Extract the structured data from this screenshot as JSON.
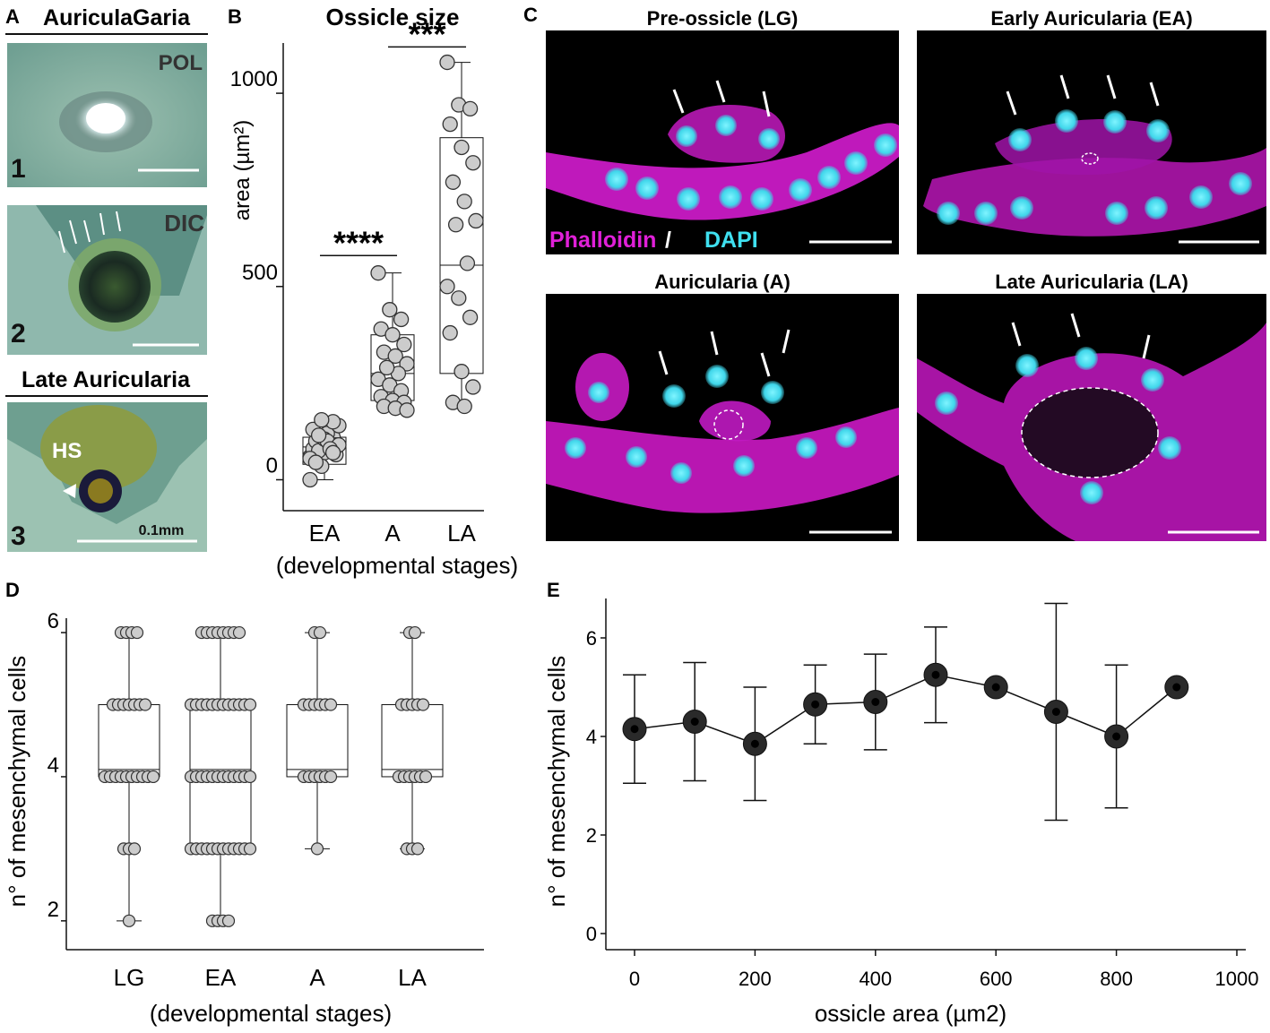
{
  "panel_letters": {
    "a": "A",
    "b": "B",
    "c": "C",
    "d": "D",
    "e": "E"
  },
  "panel_a": {
    "title_top": "AuriculaGaria",
    "title_bottom": "Late Auricularia",
    "tiles": [
      {
        "number": "1",
        "mode": "POL",
        "scale_label": ""
      },
      {
        "number": "2",
        "mode": "DIC",
        "scale_label": ""
      },
      {
        "number": "3",
        "mode": "",
        "hs_label": "HS",
        "scale_label": "0.1mm"
      }
    ]
  },
  "panel_c": {
    "titles": [
      "Pre-ossicle (LG)",
      "Early Auricularia (EA)",
      "Auricularia (A)",
      "Late Auricularia (LA)"
    ],
    "stain_magenta": "Phalloidin",
    "stain_sep": " / ",
    "stain_cyan": "DAPI"
  },
  "colors": {
    "magenta": "#e020d8",
    "cyan": "#3fe0f0",
    "point_fill": "#cccccc",
    "dark_point": "#111111"
  },
  "chart_data": [
    {
      "id": "B",
      "type": "box-scatter",
      "title": "Ossicle size",
      "xlabel": "(developmental stages)",
      "ylabel": "area (µm²)",
      "categories": [
        "EA",
        "A",
        "LA"
      ],
      "ylim": [
        -80,
        1130
      ],
      "yticks": [
        0,
        500,
        1000
      ],
      "boxes": [
        {
          "q1": 40,
          "median": 85,
          "q3": 110,
          "min": 0,
          "max": 160
        },
        {
          "q1": 205,
          "median": 275,
          "q3": 375,
          "min": 180,
          "max": 535
        },
        {
          "q1": 275,
          "median": 555,
          "q3": 885,
          "min": 190,
          "max": 1080
        }
      ],
      "points": [
        [
          60,
          95,
          110,
          80,
          70,
          90,
          100,
          120,
          140,
          75,
          85,
          55,
          35,
          150,
          130,
          105,
          65,
          45,
          100,
          90,
          115,
          80,
          0,
          155,
          70
        ],
        [
          535,
          440,
          415,
          390,
          375,
          350,
          330,
          320,
          300,
          290,
          275,
          260,
          245,
          230,
          215,
          205,
          200,
          190,
          185,
          180,
          290
        ],
        [
          1080,
          970,
          960,
          920,
          860,
          820,
          770,
          720,
          670,
          660,
          560,
          500,
          470,
          420,
          380,
          280,
          240,
          200,
          190
        ]
      ],
      "significance": [
        {
          "label": "****",
          "between": [
            "EA",
            "A"
          ]
        },
        {
          "label": "***",
          "between": [
            "A",
            "LA"
          ]
        }
      ]
    },
    {
      "id": "D",
      "type": "box-scatter",
      "xlabel": "(developmental stages)",
      "ylabel": "n° of mesenchymal cells",
      "categories": [
        "LG",
        "EA",
        "A",
        "LA"
      ],
      "ylim": [
        1.6,
        6.2
      ],
      "yticks": [
        2,
        4,
        6
      ],
      "boxes": [
        {
          "q1": 4,
          "median": 4.1,
          "q3": 5,
          "min": 2,
          "max": 6
        },
        {
          "q1": 3,
          "median": 4.1,
          "q3": 5,
          "min": 2,
          "max": 6
        },
        {
          "q1": 4,
          "median": 4.1,
          "q3": 5,
          "min": 3,
          "max": 6
        },
        {
          "q1": 4,
          "median": 4.1,
          "q3": 5,
          "min": 3,
          "max": 6
        }
      ],
      "point_rows": [
        [
          {
            "y": 6,
            "n": 4
          },
          {
            "y": 5,
            "n": 7
          },
          {
            "y": 4,
            "n": 10
          },
          {
            "y": 3,
            "n": 3
          },
          {
            "y": 2,
            "n": 1
          }
        ],
        [
          {
            "y": 6,
            "n": 8
          },
          {
            "y": 5,
            "n": 12
          },
          {
            "y": 4,
            "n": 12
          },
          {
            "y": 3,
            "n": 12
          },
          {
            "y": 2,
            "n": 4
          }
        ],
        [
          {
            "y": 6,
            "n": 2
          },
          {
            "y": 5,
            "n": 6
          },
          {
            "y": 4,
            "n": 6
          },
          {
            "y": 3,
            "n": 1
          }
        ],
        [
          {
            "y": 6,
            "n": 2
          },
          {
            "y": 5,
            "n": 5
          },
          {
            "y": 4,
            "n": 6
          },
          {
            "y": 3,
            "n": 3
          }
        ]
      ]
    },
    {
      "id": "E",
      "type": "line",
      "xlabel": "ossicle area (µm2)",
      "ylabel": "n° of mesenchymal cells",
      "xlim": [
        -30,
        1000
      ],
      "ylim": [
        -0.4,
        6.6
      ],
      "xticks": [
        0,
        200,
        400,
        600,
        800,
        1000
      ],
      "yticks": [
        0,
        2,
        4,
        6
      ],
      "points": [
        {
          "x": 0,
          "y": 4.15,
          "err": 1.1
        },
        {
          "x": 100,
          "y": 4.3,
          "err": 1.2
        },
        {
          "x": 200,
          "y": 3.85,
          "err": 1.15
        },
        {
          "x": 300,
          "y": 4.65,
          "err": 0.8
        },
        {
          "x": 400,
          "y": 4.7,
          "err": 0.97
        },
        {
          "x": 500,
          "y": 5.25,
          "err": 0.97
        },
        {
          "x": 600,
          "y": 5.0,
          "err": 0
        },
        {
          "x": 700,
          "y": 4.5,
          "err": 2.2
        },
        {
          "x": 800,
          "y": 4.0,
          "err": 1.45
        },
        {
          "x": 900,
          "y": 5.0,
          "err": 0
        }
      ]
    }
  ]
}
